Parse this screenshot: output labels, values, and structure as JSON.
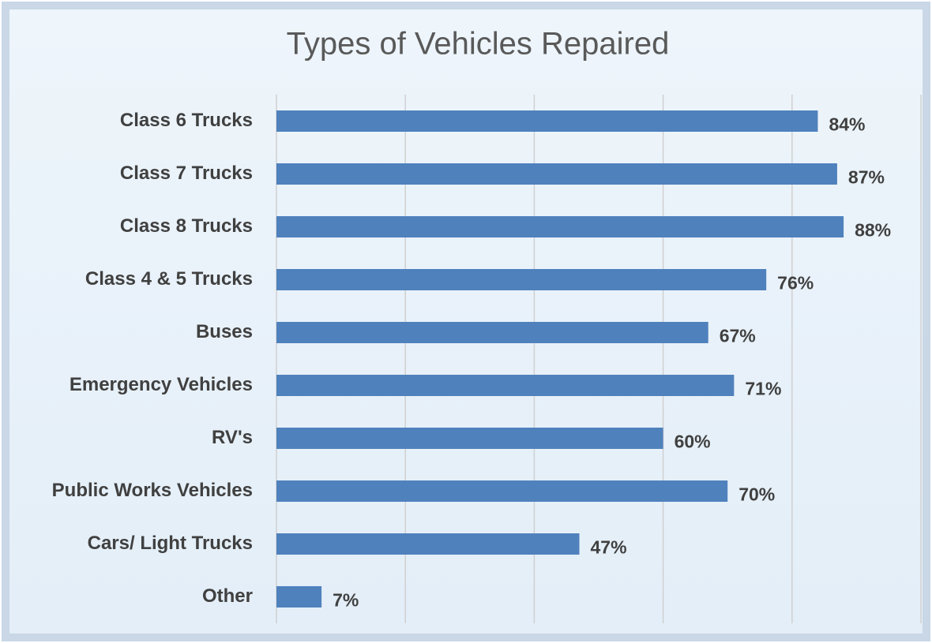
{
  "chart_data": {
    "type": "bar",
    "orientation": "horizontal",
    "title": "Types of Vehicles Repaired",
    "categories": [
      "Class 6 Trucks",
      "Class 7 Trucks",
      "Class 8 Trucks",
      "Class 4 & 5 Trucks",
      "Buses",
      "Emergency Vehicles",
      "RV's",
      "Public Works Vehicles",
      "Cars/ Light Trucks",
      "Other"
    ],
    "values": [
      84,
      87,
      88,
      76,
      67,
      71,
      60,
      70,
      47,
      7
    ],
    "value_labels": [
      "84%",
      "87%",
      "88%",
      "76%",
      "67%",
      "71%",
      "60%",
      "70%",
      "47%",
      "7%"
    ],
    "color": "#4f81bd",
    "xlim": [
      0,
      100
    ],
    "xticks": [
      0,
      20,
      40,
      60,
      80,
      100
    ],
    "grid": true
  }
}
